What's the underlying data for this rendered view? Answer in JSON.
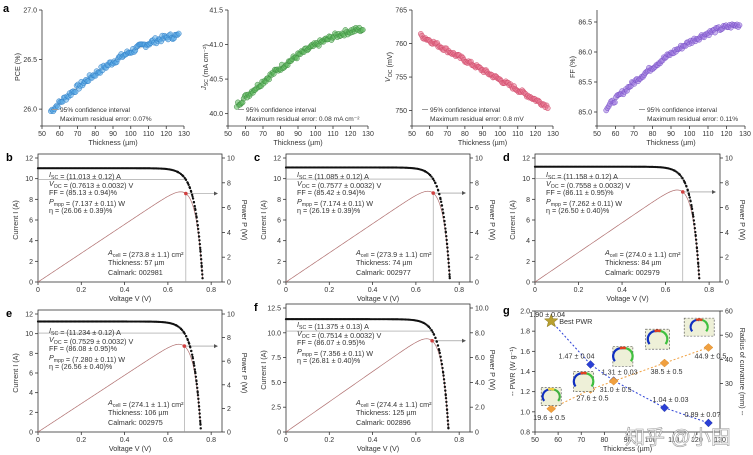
{
  "chart_data": [
    {
      "id": "a1",
      "panel_letter": "a",
      "type": "scatter",
      "xlabel": "Thickness (µm)",
      "ylabel": "PCE (%)",
      "xlim": [
        50,
        130
      ],
      "ylim": [
        25.85,
        27.0
      ],
      "xticks": [
        50,
        60,
        70,
        80,
        90,
        100,
        110,
        120,
        130
      ],
      "yticks": [
        26.0,
        26.5,
        27.0
      ],
      "ytick_labels": [
        "26.0",
        "26.5",
        "27.0"
      ],
      "fit": {
        "x_start": 55,
        "x_end": 127,
        "y_start": 25.98,
        "y_end": 26.74,
        "shape": "concave"
      },
      "scatter_noise": 0.03,
      "color": "#5aa9e6",
      "edge": "#2f7fc8",
      "legend": "95% confidence interval",
      "note": "Maximum residual error: 0.07%"
    },
    {
      "id": "a2",
      "type": "scatter",
      "xlabel": "Thickness (µm)",
      "ylabel": "J_SC (mA cm⁻²)",
      "xlim": [
        50,
        130
      ],
      "ylim": [
        39.85,
        41.5
      ],
      "xticks": [
        50,
        60,
        70,
        80,
        90,
        100,
        110,
        120,
        130
      ],
      "yticks": [
        40.0,
        40.5,
        41.0,
        41.5
      ],
      "ytick_labels": [
        "40.0",
        "40.5",
        "41.0",
        "41.5"
      ],
      "fit": {
        "x_start": 55,
        "x_end": 127,
        "y_start": 40.12,
        "y_end": 41.22,
        "shape": "concave"
      },
      "scatter_noise": 0.04,
      "color": "#5cb85c",
      "edge": "#3e8e41",
      "legend": "95% confidence interval",
      "note": "Maximum residual error: 0.08 mA cm⁻²"
    },
    {
      "id": "a3",
      "type": "scatter",
      "xlabel": "Thickness (µm)",
      "ylabel": "V_OC (mV)",
      "xlim": [
        50,
        130
      ],
      "ylim": [
        748,
        765
      ],
      "xticks": [
        50,
        60,
        70,
        80,
        90,
        100,
        110,
        120,
        130
      ],
      "yticks": [
        750,
        755,
        760,
        765
      ],
      "ytick_labels": [
        "750",
        "755",
        "760",
        "765"
      ],
      "fit": {
        "x_start": 55,
        "x_end": 127,
        "y_start": 761.2,
        "y_end": 750.6,
        "shape": "linear"
      },
      "scatter_noise": 0.3,
      "color": "#e8748f",
      "edge": "#d04a6a",
      "legend": "95% confidence interval",
      "note": "Maximum residual error: 0.8 mV"
    },
    {
      "id": "a4",
      "type": "scatter",
      "xlabel": "Thickness (µm)",
      "ylabel": "FF (%)",
      "xlim": [
        50,
        130
      ],
      "ylim": [
        84.8,
        86.7
      ],
      "xticks": [
        50,
        60,
        70,
        80,
        90,
        100,
        110,
        120,
        130
      ],
      "yticks": [
        85.0,
        85.5,
        86.0,
        86.5
      ],
      "ytick_labels": [
        "85.0",
        "85.5",
        "86.0",
        "86.5"
      ],
      "fit": {
        "x_start": 55,
        "x_end": 127,
        "y_start": 85.06,
        "y_end": 86.45,
        "shape": "concave"
      },
      "scatter_noise": 0.04,
      "color": "#a07be0",
      "edge": "#7a52c8",
      "legend": "95% confidence interval",
      "note": "Maximum residual error: 0.11%"
    },
    {
      "id": "b",
      "panel_letter": "b",
      "type": "line",
      "xlabel": "Voltage V (V)",
      "ylabel": "Current I (A)",
      "y2label": "Power P (W)",
      "xlim": [
        0,
        0.85
      ],
      "ylim": [
        0,
        12
      ],
      "y2lim": [
        0,
        10
      ],
      "xticks": [
        0,
        0.2,
        0.4,
        0.6,
        0.8
      ],
      "xtick_labels": [
        "0",
        "0.2",
        "0.4",
        "0.6",
        "0.8"
      ],
      "yticks": [
        0,
        2,
        4,
        6,
        8,
        10,
        12
      ],
      "ytick_labels": [
        "0",
        "2",
        "4",
        "6",
        "8",
        "10",
        "12"
      ],
      "y2ticks": [
        0,
        2,
        4,
        6,
        8,
        10
      ],
      "y2tick_labels": [
        "0",
        "2",
        "4",
        "6",
        "8",
        "10"
      ],
      "isc": 11.013,
      "voc": 0.7613,
      "vmpp": 0.683,
      "pmpp": 7.137,
      "params": [
        "I_SC = (11.013 ± 0.12) A",
        "V_OC = (0.7613 ± 0.0032) V",
        "FF = (85.13 ± 0.94)%",
        "P_mpp = (7.137 ± 0.11) W",
        "η = (26.06 ± 0.39)%"
      ],
      "cell": [
        "A_cell = (273.8 ± 1.1) cm²",
        "Thickness: 57 µm",
        "Calmark: 002981"
      ]
    },
    {
      "id": "c",
      "panel_letter": "c",
      "type": "line",
      "xlabel": "Voltage V (V)",
      "ylabel": "Current I (A)",
      "y2label": "Power P (W)",
      "xlim": [
        0,
        0.85
      ],
      "ylim": [
        0,
        12
      ],
      "y2lim": [
        0,
        10
      ],
      "xticks": [
        0,
        0.2,
        0.4,
        0.6,
        0.8
      ],
      "xtick_labels": [
        "0",
        "0.2",
        "0.4",
        "0.6",
        "0.8"
      ],
      "yticks": [
        0,
        2,
        4,
        6,
        8,
        10,
        12
      ],
      "ytick_labels": [
        "0",
        "2",
        "4",
        "6",
        "8",
        "10",
        "12"
      ],
      "y2ticks": [
        0,
        2,
        4,
        6,
        8,
        10
      ],
      "y2tick_labels": [
        "0",
        "2",
        "4",
        "6",
        "8",
        "10"
      ],
      "isc": 11.085,
      "voc": 0.7577,
      "vmpp": 0.68,
      "pmpp": 7.174,
      "params": [
        "I_SC = (11.085 ± 0.12) A",
        "V_OC = (0.7577 ± 0.0032) V",
        "FF = (85.42 ± 0.94)%",
        "P_mpp = (7.174 ± 0.11) W",
        "η = (26.19 ± 0.39)%"
      ],
      "cell": [
        "A_cell = (273.9 ± 1.1) cm²",
        "Thickness: 74 µm",
        "Calmark: 002977"
      ]
    },
    {
      "id": "d",
      "panel_letter": "d",
      "type": "line",
      "xlabel": "Voltage V (V)",
      "ylabel": "Current I (A)",
      "y2label": "Power P (W)",
      "xlim": [
        0,
        0.85
      ],
      "ylim": [
        0,
        12
      ],
      "y2lim": [
        0,
        10
      ],
      "xticks": [
        0,
        0.2,
        0.4,
        0.6,
        0.8
      ],
      "xtick_labels": [
        "0",
        "0.2",
        "0.4",
        "0.6",
        "0.8"
      ],
      "yticks": [
        0,
        2,
        4,
        6,
        8,
        10,
        12
      ],
      "ytick_labels": [
        "0",
        "2",
        "4",
        "6",
        "8",
        "10",
        "12"
      ],
      "y2ticks": [
        0,
        2,
        4,
        6,
        8,
        10
      ],
      "y2tick_labels": [
        "0",
        "2",
        "4",
        "6",
        "8",
        "10"
      ],
      "isc": 11.158,
      "voc": 0.7558,
      "vmpp": 0.679,
      "pmpp": 7.262,
      "params": [
        "I_SC = (11.158 ± 0.12) A",
        "V_OC = (0.7558 ± 0.0032) V",
        "FF = (86.11 ± 0.95)%",
        "P_mpp = (7.262 ± 0.11) W",
        "η = (26.50 ± 0.40)%"
      ],
      "cell": [
        "A_cell = (274.0 ± 1.1) cm²",
        "Thickness: 84 µm",
        "Calmark: 002979"
      ]
    },
    {
      "id": "e",
      "panel_letter": "e",
      "type": "line",
      "xlabel": "Voltage V (V)",
      "ylabel": "Current I (A)",
      "y2label": "Power P (W)",
      "xlim": [
        0,
        0.85
      ],
      "ylim": [
        0,
        12
      ],
      "y2lim": [
        0,
        10
      ],
      "xticks": [
        0,
        0.2,
        0.4,
        0.6,
        0.8
      ],
      "xtick_labels": [
        "0",
        "0.2",
        "0.4",
        "0.6",
        "0.8"
      ],
      "yticks": [
        0,
        2,
        4,
        6,
        8,
        10,
        12
      ],
      "ytick_labels": [
        "0",
        "2",
        "4",
        "6",
        "8",
        "10",
        "12"
      ],
      "y2ticks": [
        0,
        2,
        4,
        6,
        8,
        10
      ],
      "y2tick_labels": [
        "0",
        "2",
        "4",
        "6",
        "8",
        "10"
      ],
      "isc": 11.234,
      "voc": 0.7529,
      "vmpp": 0.676,
      "pmpp": 7.28,
      "params": [
        "I_SC = (11.234 ± 0.12) A",
        "V_OC = (0.7529 ± 0.0032) V",
        "FF = (86.08 ± 0.95)%",
        "P_mpp = (7.280 ± 0.11) W",
        "η = (26.56 ± 0.40)%"
      ],
      "cell": [
        "A_cell = (274.1 ± 1.1) cm²",
        "Thickness: 106 µm",
        "Calmark: 002975"
      ]
    },
    {
      "id": "f",
      "panel_letter": "f",
      "type": "line",
      "xlabel": "Voltage V (V)",
      "ylabel": "Current I (A)",
      "y2label": "Power P (W)",
      "xlim": [
        0,
        0.85
      ],
      "ylim": [
        0,
        12.5
      ],
      "y2lim": [
        0,
        10
      ],
      "xticks": [
        0,
        0.2,
        0.4,
        0.6,
        0.8
      ],
      "xtick_labels": [
        "0",
        "0.2",
        "0.4",
        "0.6",
        "0.8"
      ],
      "yticks": [
        0,
        2.5,
        5,
        7.5,
        10,
        12.5
      ],
      "ytick_labels": [
        "0",
        "2.5",
        "5.0",
        "7.5",
        "10.0",
        "12.5"
      ],
      "y2ticks": [
        0,
        2,
        4,
        6,
        8,
        10
      ],
      "y2tick_labels": [
        "0",
        "2.0",
        "4.0",
        "6.0",
        "8.0",
        "10.0"
      ],
      "isc": 11.375,
      "voc": 0.7514,
      "vmpp": 0.675,
      "pmpp": 7.356,
      "params": [
        "I_SC = (11.375 ± 0.13) A",
        "V_OC = (0.7514 ± 0.0032) V",
        "FF = (86.07 ± 0.95)%",
        "P_mpp = (7.356 ± 0.11) W",
        "η = (26.81 ± 0.40)%"
      ],
      "cell": [
        "A_cell = (274.4 ± 1.1) cm²",
        "Thickness: 125 µm",
        "Calmark: 002896"
      ]
    },
    {
      "id": "g",
      "panel_letter": "g",
      "type": "scatter",
      "xlabel": "Thickness (µm)",
      "ylabel": "PWR (W g⁻¹)",
      "y2label": "Radius of curvature (mm)",
      "xlim": [
        50,
        130
      ],
      "ylim": [
        0.8,
        2.0
      ],
      "y2lim": [
        10,
        60
      ],
      "xticks": [
        50,
        60,
        70,
        80,
        90,
        100,
        110,
        120,
        130
      ],
      "yticks": [
        0.8,
        1.0,
        1.2,
        1.4,
        1.6,
        1.8,
        2.0
      ],
      "ytick_labels": [
        "0.8",
        "1.0",
        "1.2",
        "1.4",
        "1.6",
        "1.8",
        "2.0"
      ],
      "y2ticks": [
        30,
        40,
        50,
        60
      ],
      "y2tick_labels": [
        "30",
        "40",
        "50",
        "60"
      ],
      "series": [
        {
          "name": "PWR",
          "color": "#2a3fd6",
          "x": [
            57,
            74,
            84,
            106,
            125
          ],
          "values": [
            1.9,
            1.47,
            1.31,
            1.04,
            0.89
          ],
          "labels": [
            "1.90 ± 0.04",
            "1.47 ± 0.04",
            "1.31 ± 0.03",
            "1.04 ± 0.03",
            "0.89 ± 0.0?"
          ]
        },
        {
          "name": "Radius of curvature",
          "color": "#f0a040",
          "x": [
            57,
            74,
            84,
            106,
            125
          ],
          "values": [
            19.6,
            27.6,
            31.0,
            38.5,
            44.9
          ],
          "labels": [
            "19.6 ± 0.5",
            "27.6 ± 0.5",
            "31.0 ± 0.5",
            "38.5 ± 0.5",
            "44.9 ± 0.5"
          ]
        }
      ],
      "annotation": "Best PWR"
    }
  ],
  "watermark": "知乎 @小田"
}
